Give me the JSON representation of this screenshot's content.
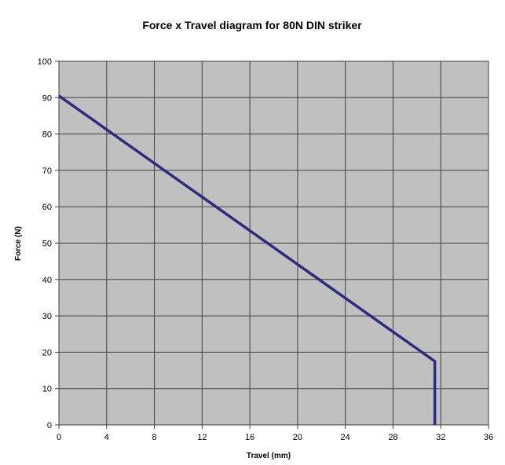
{
  "chart_data": {
    "type": "line",
    "title": "Force x Travel diagram for 80N DIN striker",
    "xlabel": "Travel (mm)",
    "ylabel": "Force (N)",
    "xlim": [
      0,
      36
    ],
    "ylim": [
      0,
      100
    ],
    "xticks": [
      "0",
      "4",
      "8",
      "12",
      "16",
      "20",
      "24",
      "28",
      "32",
      "36"
    ],
    "yticks": [
      "0",
      "10",
      "20",
      "30",
      "40",
      "50",
      "60",
      "70",
      "80",
      "90",
      "100"
    ],
    "grid": true,
    "legend": "none",
    "series": [
      {
        "x": [
          0,
          31.5,
          31.5
        ],
        "y": [
          90.5,
          17.5,
          0
        ]
      }
    ]
  },
  "colors": {
    "plot_background": "#c0c0c0",
    "grid": "#404040",
    "line": "#2e2b7c"
  }
}
